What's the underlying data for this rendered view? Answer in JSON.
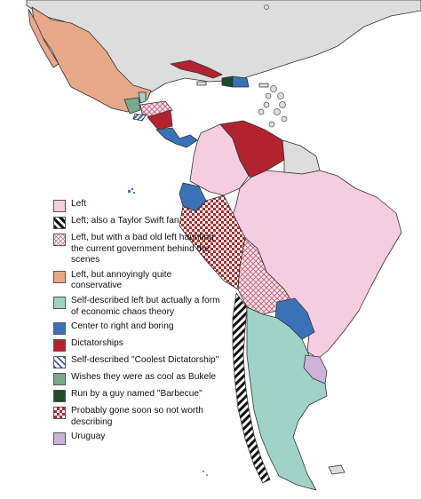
{
  "colors": {
    "left": "#f5cde0",
    "conservative_left": "#e8a88a",
    "chaos": "#9fd3c7",
    "center_right": "#3a72b8",
    "dictatorship": "#b3222f",
    "bukele": "#7aa88c",
    "barbecue": "#1c4a2a",
    "checker": "#b22a2a",
    "uruguay": "#cdb3d8",
    "other_land": "#dddddd"
  },
  "legend": {
    "items": [
      {
        "label": "Left",
        "style": "solid",
        "color": "#f5cde0"
      },
      {
        "label": "Left; also a Taylor Swift fan",
        "style": "stripe-black"
      },
      {
        "label": "Left, but with a bad old left haunting the current government behind the scenes",
        "style": "cross-hatch-pink"
      },
      {
        "label": "Left, but annoyingly quite conservative",
        "style": "solid",
        "color": "#e8a88a"
      },
      {
        "label": "Self-described left but actually a form of economic chaos theory",
        "style": "solid",
        "color": "#9fd3c7"
      },
      {
        "label": "Center to right and boring",
        "style": "solid",
        "color": "#3a72b8"
      },
      {
        "label": "Dictatorships",
        "style": "solid",
        "color": "#b3222f"
      },
      {
        "label": "Self-described \"Coolest Dictatorship\"",
        "style": "stripe-blue"
      },
      {
        "label": "Wishes they were as cool as Bukele",
        "style": "solid",
        "color": "#7aa88c"
      },
      {
        "label": "Run by a guy named \"Barbecue\"",
        "style": "solid",
        "color": "#1c4a2a"
      },
      {
        "label": "Probably gone soon so not worth describing",
        "style": "checker-red"
      },
      {
        "label": "Uruguay",
        "style": "solid",
        "color": "#cdb3d8"
      }
    ]
  }
}
